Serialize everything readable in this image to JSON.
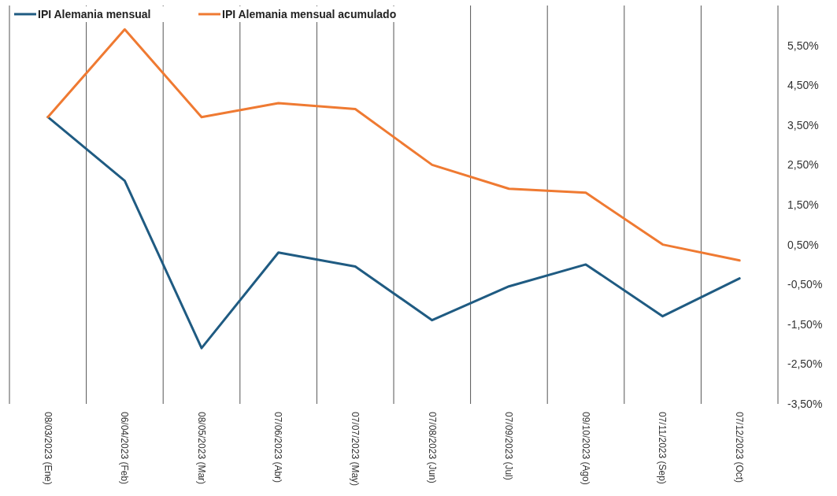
{
  "chart_data": {
    "type": "line",
    "categories": [
      "08/03/2023 (Ene)",
      "06/04/2023 (Feb)",
      "08/05/2023 (Mar)",
      "07/06/2023 (Abr)",
      "07/07/2023 (May)",
      "07/08/2023 (Jun)",
      "07/09/2023 (Jul)",
      "09/10/2023 (Ago)",
      "07/11/2023 (Sep)",
      "07/12/2023 (Oct)"
    ],
    "series": [
      {
        "name": "IPI Alemania mensual",
        "color": "#1f5b82",
        "values": [
          3.7,
          2.1,
          -2.1,
          0.3,
          -0.05,
          -1.4,
          -0.55,
          0.0,
          -1.3,
          -0.35
        ]
      },
      {
        "name": "IPI Alemania mensual acumulado",
        "color": "#ef7a32",
        "values": [
          3.7,
          5.9,
          3.7,
          4.05,
          3.9,
          2.5,
          1.9,
          1.8,
          0.5,
          0.1
        ]
      }
    ],
    "ylim": [
      -3.5,
      6.5
    ],
    "yticks": [
      {
        "value": -3.5,
        "label": "-3,50%"
      },
      {
        "value": -2.5,
        "label": "-2,50%"
      },
      {
        "value": -1.5,
        "label": "-1,50%"
      },
      {
        "value": -0.5,
        "label": "-0,50%"
      },
      {
        "value": 0.5,
        "label": "0,50%"
      },
      {
        "value": 1.5,
        "label": "1,50%"
      },
      {
        "value": 2.5,
        "label": "2,50%"
      },
      {
        "value": 3.5,
        "label": "3,50%"
      },
      {
        "value": 4.5,
        "label": "4,50%"
      },
      {
        "value": 5.5,
        "label": "5,50%"
      }
    ],
    "grid": "x",
    "legend": "top left",
    "marker": "none",
    "line_style": "solid"
  }
}
